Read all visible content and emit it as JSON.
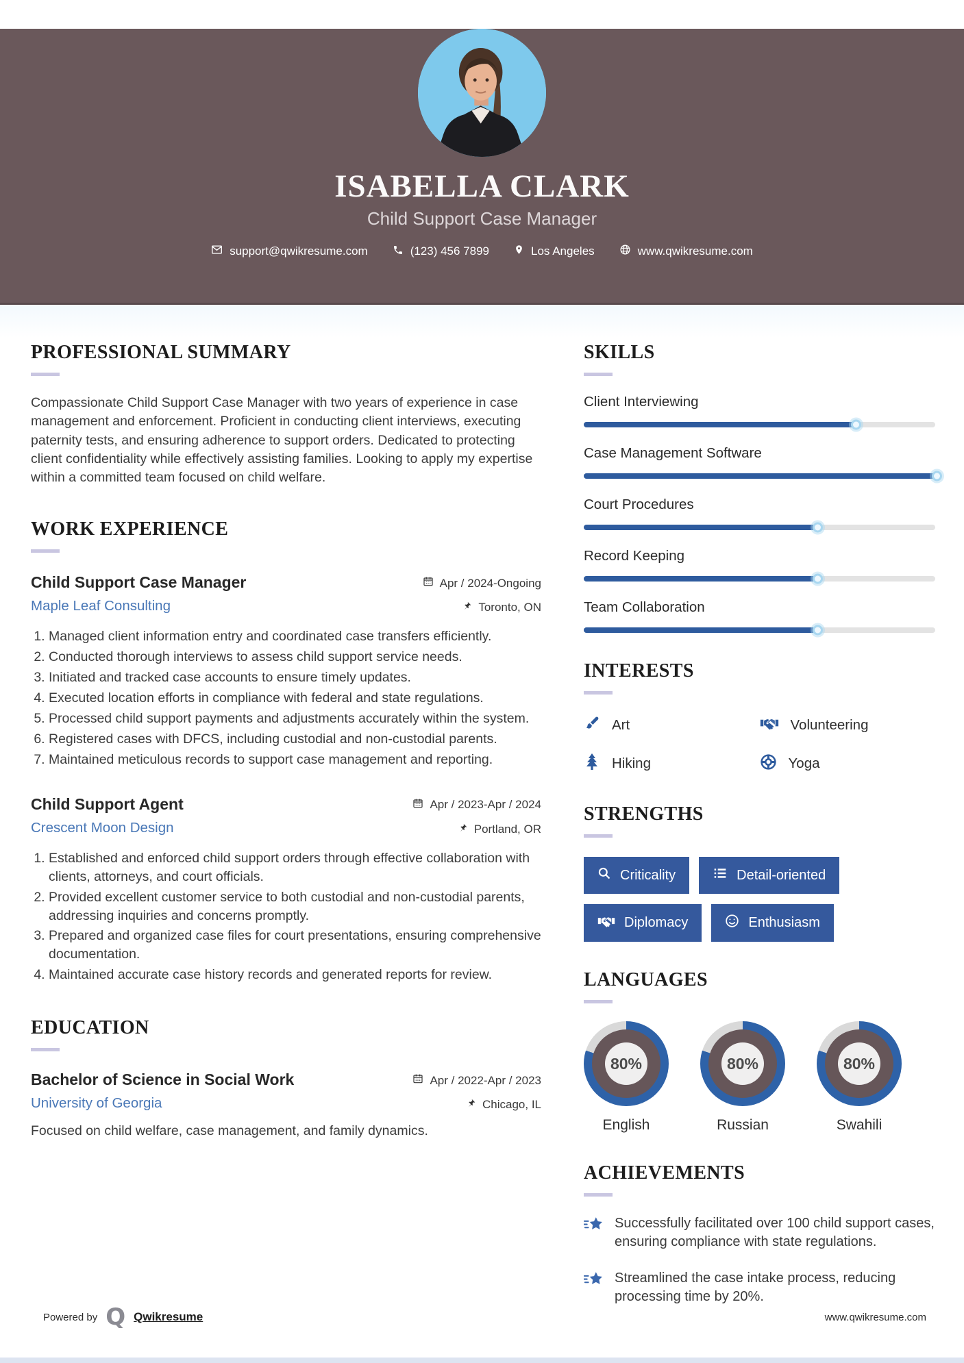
{
  "theme": {
    "header_bg": "#6a585b",
    "photo_bg": "#7ec9ec",
    "accent_blue": "#2e5b9e",
    "button_blue": "#35599d",
    "link_blue": "#4a78b7",
    "rule_lavender": "#c9c6e1",
    "donut_fill": "#2e62a8",
    "donut_track": "#d9d9d9",
    "donut_mid": "#665659"
  },
  "header": {
    "name": "ISABELLA CLARK",
    "title": "Child Support Case Manager",
    "contacts": [
      {
        "icon": "email-icon",
        "text": "support@qwikresume.com"
      },
      {
        "icon": "phone-icon",
        "text": "(123) 456 7899"
      },
      {
        "icon": "location-icon",
        "text": "Los Angeles"
      },
      {
        "icon": "globe-icon",
        "text": "www.qwikresume.com"
      }
    ]
  },
  "left": {
    "summary": {
      "heading": "PROFESSIONAL SUMMARY",
      "text": "Compassionate Child Support Case Manager with two years of experience in case management and enforcement. Proficient in conducting client interviews, executing paternity tests, and ensuring adherence to support orders. Dedicated to protecting client confidentiality while effectively assisting families. Looking to apply my expertise within a committed team focused on child welfare."
    },
    "experience": {
      "heading": "WORK EXPERIENCE",
      "jobs": [
        {
          "title": "Child Support Case Manager",
          "company": "Maple Leaf Consulting",
          "date": "Apr / 2024-Ongoing",
          "location": "Toronto, ON",
          "duties": [
            "Managed client information entry and coordinated case transfers efficiently.",
            "Conducted thorough interviews to assess child support service needs.",
            "Initiated and tracked case accounts to ensure timely updates.",
            "Executed location efforts in compliance with federal and state regulations.",
            "Processed child support payments and adjustments accurately within the system.",
            "Registered cases with DFCS, including custodial and non-custodial parents.",
            "Maintained meticulous records to support case management and reporting."
          ]
        },
        {
          "title": "Child Support Agent",
          "company": "Crescent Moon Design",
          "date": "Apr / 2023-Apr / 2024",
          "location": "Portland, OR",
          "duties": [
            "Established and enforced child support orders through effective collaboration with clients, attorneys, and court officials.",
            "Provided excellent customer service to both custodial and non-custodial parents, addressing inquiries and concerns promptly.",
            "Prepared and organized case files for court presentations, ensuring comprehensive documentation.",
            "Maintained accurate case history records and generated reports for review."
          ]
        }
      ]
    },
    "education": {
      "heading": "EDUCATION",
      "degree": "Bachelor of Science in Social Work",
      "school": "University of Georgia",
      "date": "Apr / 2022-Apr / 2023",
      "location": "Chicago, IL",
      "note": "Focused on child welfare, case management, and family dynamics."
    }
  },
  "right": {
    "skills": {
      "heading": "SKILLS",
      "items": [
        {
          "label": "Client Interviewing",
          "percent": 77
        },
        {
          "label": "Case Management Software",
          "percent": 100
        },
        {
          "label": "Court Procedures",
          "percent": 66
        },
        {
          "label": "Record Keeping",
          "percent": 66
        },
        {
          "label": "Team Collaboration",
          "percent": 66
        }
      ]
    },
    "interests": {
      "heading": "INTERESTS",
      "items": [
        {
          "icon": "paintbrush-icon",
          "label": "Art"
        },
        {
          "icon": "handshake-icon",
          "label": "Volunteering"
        },
        {
          "icon": "pine-tree-icon",
          "label": "Hiking"
        },
        {
          "icon": "lifebuoy-icon",
          "label": "Yoga"
        }
      ]
    },
    "strengths": {
      "heading": "STRENGTHS",
      "items": [
        {
          "icon": "magnifier-icon",
          "label": "Criticality"
        },
        {
          "icon": "list-icon",
          "label": "Detail-oriented"
        },
        {
          "icon": "handshake-icon",
          "label": "Diplomacy"
        },
        {
          "icon": "smiley-icon",
          "label": "Enthusiasm"
        }
      ]
    },
    "languages": {
      "heading": "LANGUAGES",
      "items": [
        {
          "label": "English",
          "percent": 80,
          "display": "80%"
        },
        {
          "label": "Russian",
          "percent": 80,
          "display": "80%"
        },
        {
          "label": "Swahili",
          "percent": 80,
          "display": "80%"
        }
      ]
    },
    "achievements": {
      "heading": "ACHIEVEMENTS",
      "items": [
        "Successfully facilitated over 100 child support cases, ensuring compliance with state regulations.",
        "Streamlined the case intake process, reducing processing time by 20%."
      ]
    }
  },
  "footer": {
    "powered_by": "Powered by",
    "logo_letter": "Q",
    "brand": "Qwikresume",
    "site": "www.qwikresume.com"
  }
}
